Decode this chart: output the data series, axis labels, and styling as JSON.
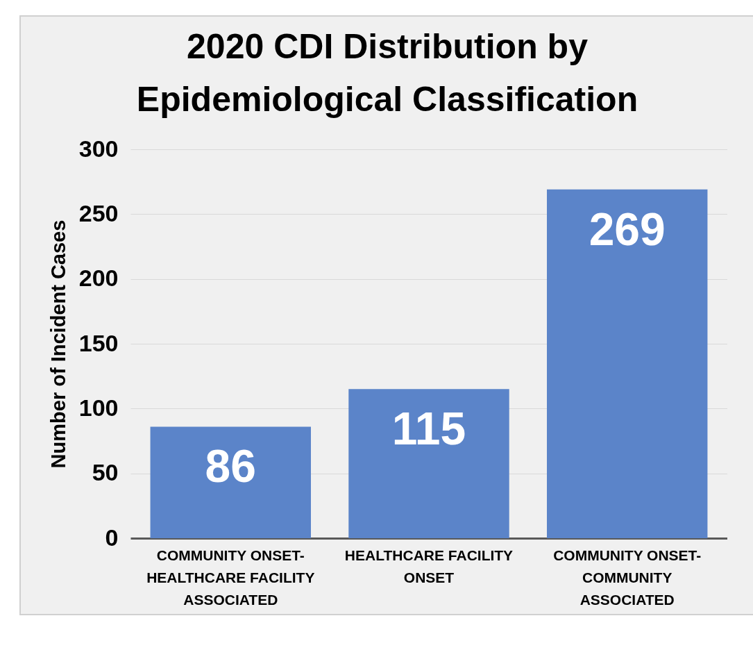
{
  "chart_data": {
    "type": "bar",
    "title": [
      "2020 CDI Distribution by",
      "Epidemiological Classification"
    ],
    "ylabel": "Number of Incident Cases",
    "categories": [
      "COMMUNITY ONSET-HEALTHCARE FACILITY ASSOCIATED",
      "HEALTHCARE FACILITY ONSET",
      "COMMUNITY ONSET-COMMUNITY ASSOCIATED"
    ],
    "values": [
      86,
      115,
      269
    ],
    "color": "#5b84c9",
    "data_labels": true,
    "ylim": [
      0,
      300
    ],
    "yticks": [
      0,
      50,
      100,
      150,
      200,
      250,
      300
    ],
    "grid": "y"
  }
}
